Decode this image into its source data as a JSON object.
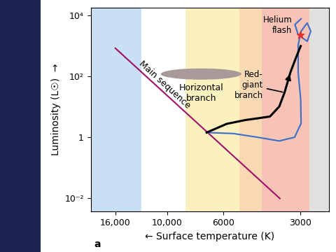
{
  "chart_data": {
    "type": "line",
    "x_label": "← Surface temperature (K)",
    "y_label": "Luminosity (L☉)  →",
    "panel_label": "a",
    "log": true,
    "xlim": [
      20000,
      2300
    ],
    "ylim": [
      0.0035,
      18000
    ],
    "xticks": [
      {
        "value": 16000,
        "label": "16,000"
      },
      {
        "value": 10000,
        "label": "10,000"
      },
      6000,
      3000
    ],
    "yticks": [
      {
        "value": 0.01,
        "label": "10⁻²"
      },
      1,
      {
        "value": 100,
        "label": "10²"
      },
      {
        "value": 10000,
        "label": "10⁴"
      }
    ],
    "bands": [
      {
        "from": 20000,
        "to": 12600,
        "color": "#bcd8f0"
      },
      {
        "from": 12600,
        "to": 8450,
        "color": "#ffffff"
      },
      {
        "from": 8450,
        "to": 5200,
        "color": "#fbeeb0"
      },
      {
        "from": 5200,
        "to": 4250,
        "color": "#f8d0a0"
      },
      {
        "from": 4250,
        "to": 2750,
        "color": "#f4b4a4"
      },
      {
        "from": 2750,
        "to": 2300,
        "color": "#dadada"
      }
    ],
    "series": [
      {
        "name": "Main sequence",
        "type": "line",
        "color": "#a0106a",
        "line_style": "solid",
        "x": [
          16000,
          3600
        ],
        "values": [
          830,
          0.0095
        ]
      },
      {
        "name": "Red-\ngiant\nbranch",
        "type": "line",
        "color": "#000000",
        "line_style": "solid",
        "x": [
          6990,
          5830,
          4930,
          4410,
          3940,
          3620,
          3450,
          3270,
          3120,
          2980
        ],
        "values": [
          1.4,
          2.7,
          3.6,
          4.1,
          4.7,
          10,
          29,
          135,
          380,
          980
        ]
      },
      {
        "type": "line",
        "color": "#3a6ec8",
        "line_style": "solid",
        "x": [
          6990,
          5500,
          4410,
          3620,
          3150,
          2970,
          2980,
          3050,
          3050,
          2970,
          2810,
          2720,
          2810,
          3050,
          3140,
          2970
        ],
        "values": [
          1.4,
          1.3,
          0.98,
          0.74,
          0.98,
          2.8,
          17,
          135,
          1070,
          3000,
          5600,
          3000,
          1400,
          2300,
          5000,
          7700
        ]
      },
      {
        "name": "Helium\nflash",
        "type": "scatter",
        "marker": "*",
        "color": "#e03030",
        "x": [
          3000
        ],
        "values": [
          2300
        ]
      }
    ],
    "regions": [
      {
        "name": "Horizontal\nbranch",
        "color": "#a89a98",
        "xlim": [
          10600,
          5100
        ],
        "ylim": [
          77,
          180
        ]
      }
    ]
  }
}
